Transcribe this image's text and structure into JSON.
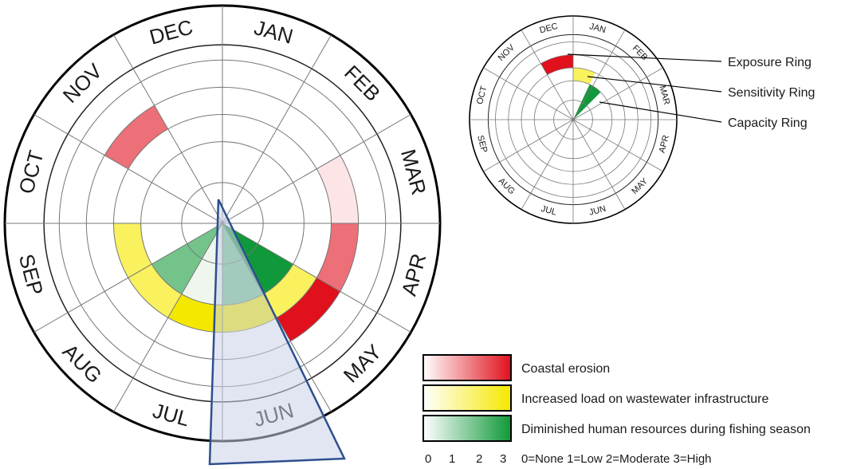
{
  "months": [
    "JAN",
    "FEB",
    "MAR",
    "APR",
    "MAY",
    "JUN",
    "JUL",
    "AUG",
    "SEP",
    "OCT",
    "NOV",
    "DEC"
  ],
  "rings": {
    "exposure": {
      "label": "Coastal erosion",
      "color_light": "#fde4e6",
      "color_dark": "#e0101c",
      "values": {
        "MAR": 1,
        "APR": 2,
        "MAY": 3,
        "NOV": 2
      }
    },
    "sensitivity": {
      "label": "Increased load on wastewater infrastructure",
      "color_light": "#fdfbd0",
      "color_dark": "#f5e800",
      "values": {
        "MAY": 2,
        "JUN": 3,
        "JUL": 3,
        "AUG": 2,
        "SEP": 2
      }
    },
    "capacity": {
      "label": "Diminished human resources during fishing season",
      "color_light": "#eef6ee",
      "color_dark": "#10993a",
      "values": {
        "MAY": 3,
        "JUN": 2,
        "JUL": 1,
        "AUG": 2
      }
    }
  },
  "highlight_month": "JUN",
  "highlight_color": "#c9d1e8",
  "highlight_stroke": "#2f4f8f",
  "inset": {
    "labels": [
      "Exposure Ring",
      "Sensitivity Ring",
      "Capacity Ring"
    ],
    "example": {
      "exposure": 3,
      "sensitivity": 2,
      "capacity": 3
    }
  },
  "scale": {
    "ticks": [
      "0",
      "1",
      "2",
      "3"
    ],
    "text": "0=None 1=Low 2=Moderate 3=High"
  }
}
